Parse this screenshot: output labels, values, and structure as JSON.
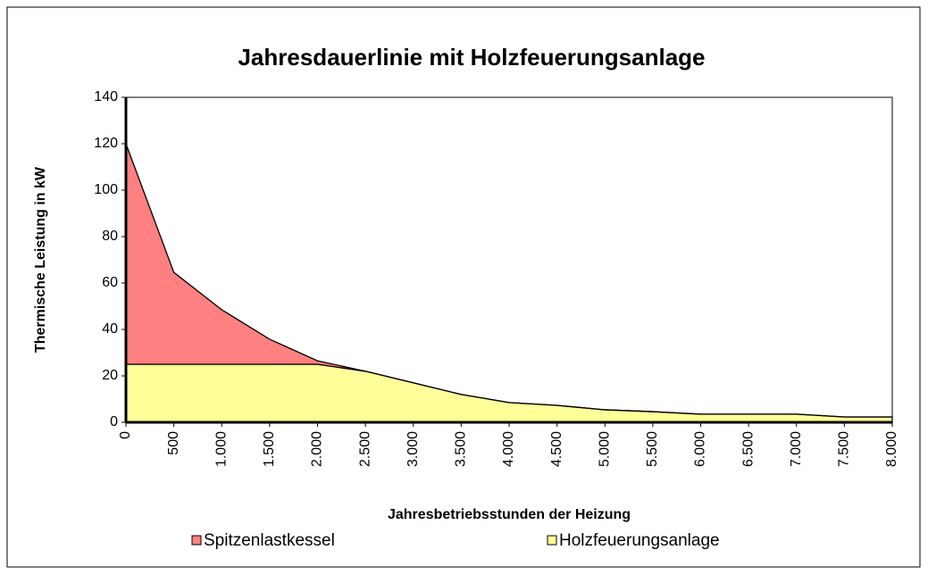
{
  "chart_data": {
    "type": "stacked_area",
    "title": "Jahresdauerlinie mit Holzfeuerungsanlage",
    "xlabel": "Jahresbetriebsstunden der Heizung",
    "ylabel": "Thermische Leistung in kW",
    "x": [
      0,
      500,
      1000,
      1500,
      2000,
      2500,
      3000,
      3500,
      4000,
      4500,
      5000,
      5500,
      6000,
      6500,
      7000,
      7500,
      8000
    ],
    "series": [
      {
        "name": "Holzfeuerungsanlage",
        "color": "#ffff99",
        "values": [
          25,
          25,
          25,
          25,
          25,
          22,
          17,
          12,
          8.5,
          7.3,
          5.4,
          4.6,
          3.5,
          3.5,
          3.5,
          2.3,
          2.3
        ]
      },
      {
        "name": "Spitzenlastkessel",
        "color": "#ff8080",
        "values": [
          95,
          39.6,
          23.5,
          10.8,
          1.5,
          0,
          0,
          0,
          0,
          0,
          0,
          0,
          0,
          0,
          0,
          0,
          0
        ]
      }
    ],
    "xlim": [
      0,
      8000
    ],
    "xticks": [
      0,
      500,
      {
        "value": 1000,
        "label": "1.000"
      },
      {
        "value": 1500,
        "label": "1.500"
      },
      {
        "value": 2000,
        "label": "2.000"
      },
      {
        "value": 2500,
        "label": "2.500"
      },
      {
        "value": 3000,
        "label": "3.000"
      },
      {
        "value": 3500,
        "label": "3.500"
      },
      {
        "value": 4000,
        "label": "4.000"
      },
      {
        "value": 4500,
        "label": "4.500"
      },
      {
        "value": 5000,
        "label": "5.000"
      },
      {
        "value": 5500,
        "label": "5.500"
      },
      {
        "value": 6000,
        "label": "6.000"
      },
      {
        "value": 6500,
        "label": "6.500"
      },
      {
        "value": 7000,
        "label": "7.000"
      },
      {
        "value": 7500,
        "label": "7.500"
      },
      {
        "value": 8000,
        "label": "8.000"
      }
    ],
    "ylim": [
      0,
      140
    ],
    "yticks": [
      0,
      20,
      40,
      60,
      80,
      100,
      120,
      140
    ]
  }
}
